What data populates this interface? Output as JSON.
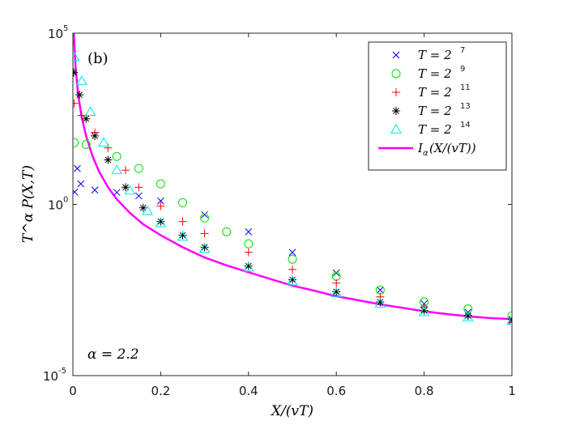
{
  "chart_data": {
    "type": "scatter",
    "panel_label": "(b)",
    "annotation": "α = 2.2",
    "xlabel": "X/(vT)",
    "ylabel": "T^α P(X,T)",
    "xlim": [
      0,
      1
    ],
    "ylim_log10": [
      -5,
      5
    ],
    "x_ticks": [
      {
        "value": 0,
        "label": "0"
      },
      {
        "value": 0.2,
        "label": "0.2"
      },
      {
        "value": 0.4,
        "label": "0.4"
      },
      {
        "value": 0.6,
        "label": "0.6"
      },
      {
        "value": 0.8,
        "label": "0.8"
      },
      {
        "value": 1,
        "label": "1"
      }
    ],
    "y_ticks": [
      {
        "log10": 5,
        "base": "10",
        "exp": "5"
      },
      {
        "log10": 0,
        "base": "10",
        "exp": "0"
      },
      {
        "log10": -5,
        "base": "10",
        "exp": "-5"
      }
    ],
    "legend_position": "top-right",
    "series": [
      {
        "name": "T = 2^7",
        "label_main": "T = 2",
        "label_exp": "7",
        "marker": "x",
        "color": "#0000ff",
        "points_log10": [
          [
            0.004,
            0.36
          ],
          [
            0.01,
            1.05
          ],
          [
            0.018,
            0.6
          ],
          [
            0.05,
            0.42
          ],
          [
            0.1,
            0.35
          ],
          [
            0.15,
            0.25
          ],
          [
            0.2,
            0.1
          ],
          [
            0.3,
            -0.3
          ],
          [
            0.4,
            -0.8
          ],
          [
            0.5,
            -1.4
          ],
          [
            0.6,
            -2.0
          ],
          [
            0.7,
            -2.5
          ],
          [
            0.8,
            -2.9
          ],
          [
            0.9,
            -3.15
          ],
          [
            1.0,
            -3.4
          ]
        ]
      },
      {
        "name": "T = 2^9",
        "label_main": "T = 2",
        "label_exp": "9",
        "marker": "o",
        "color": "#00e000",
        "points_log10": [
          [
            0.003,
            1.8
          ],
          [
            0.03,
            1.75
          ],
          [
            0.1,
            1.4
          ],
          [
            0.15,
            1.05
          ],
          [
            0.2,
            0.6
          ],
          [
            0.25,
            0.05
          ],
          [
            0.3,
            -0.4
          ],
          [
            0.35,
            -0.8
          ],
          [
            0.4,
            -1.15
          ],
          [
            0.5,
            -1.6
          ],
          [
            0.6,
            -2.1
          ],
          [
            0.7,
            -2.5
          ],
          [
            0.8,
            -2.85
          ],
          [
            0.9,
            -3.05
          ],
          [
            1.0,
            -3.25
          ]
        ]
      },
      {
        "name": "T = 2^11",
        "label_main": "T = 2",
        "label_exp": "11",
        "marker": "+",
        "color": "#ff0000",
        "points_log10": [
          [
            0.003,
            2.95
          ],
          [
            0.02,
            2.6
          ],
          [
            0.05,
            2.1
          ],
          [
            0.08,
            1.65
          ],
          [
            0.12,
            1.0
          ],
          [
            0.15,
            0.5
          ],
          [
            0.2,
            -0.05
          ],
          [
            0.25,
            -0.5
          ],
          [
            0.3,
            -0.85
          ],
          [
            0.4,
            -1.4
          ],
          [
            0.5,
            -1.9
          ],
          [
            0.6,
            -2.3
          ],
          [
            0.7,
            -2.7
          ],
          [
            0.8,
            -3.0
          ],
          [
            0.9,
            -3.25
          ],
          [
            1.0,
            -3.45
          ]
        ]
      },
      {
        "name": "T = 2^13",
        "label_main": "T = 2",
        "label_exp": "13",
        "marker": "*",
        "color": "#000000",
        "points_log10": [
          [
            0.002,
            3.85
          ],
          [
            0.015,
            3.2
          ],
          [
            0.03,
            2.5
          ],
          [
            0.05,
            2.0
          ],
          [
            0.08,
            1.3
          ],
          [
            0.12,
            0.5
          ],
          [
            0.16,
            -0.1
          ],
          [
            0.2,
            -0.5
          ],
          [
            0.25,
            -0.9
          ],
          [
            0.3,
            -1.25
          ],
          [
            0.4,
            -1.8
          ],
          [
            0.5,
            -2.2
          ],
          [
            0.6,
            -2.55
          ],
          [
            0.7,
            -2.85
          ],
          [
            0.8,
            -3.1
          ],
          [
            0.9,
            -3.25
          ],
          [
            1.0,
            -3.35
          ]
        ]
      },
      {
        "name": "T = 2^14",
        "label_main": "T = 2",
        "label_exp": "14",
        "marker": "triangle",
        "color": "#00e5e5",
        "points_log10": [
          [
            0.003,
            4.3
          ],
          [
            0.02,
            3.6
          ],
          [
            0.04,
            2.7
          ],
          [
            0.07,
            1.8
          ],
          [
            0.1,
            1.0
          ],
          [
            0.13,
            0.4
          ],
          [
            0.17,
            -0.2
          ],
          [
            0.2,
            -0.55
          ],
          [
            0.25,
            -0.95
          ],
          [
            0.3,
            -1.3
          ],
          [
            0.4,
            -1.85
          ],
          [
            0.5,
            -2.25
          ],
          [
            0.6,
            -2.6
          ],
          [
            0.7,
            -2.9
          ],
          [
            0.8,
            -3.15
          ],
          [
            0.9,
            -3.3
          ],
          [
            1.0,
            -3.4
          ]
        ]
      }
    ],
    "curve": {
      "name": "I_α(X/(vT))",
      "label_main": "I",
      "label_sub": "α",
      "label_rest": "(X/(vT))",
      "color": "#ff00ff",
      "points_log10": [
        [
          0.002,
          5.0
        ],
        [
          0.006,
          4.0
        ],
        [
          0.012,
          3.2
        ],
        [
          0.02,
          2.55
        ],
        [
          0.03,
          2.0
        ],
        [
          0.045,
          1.4
        ],
        [
          0.06,
          0.95
        ],
        [
          0.08,
          0.5
        ],
        [
          0.1,
          0.15
        ],
        [
          0.13,
          -0.25
        ],
        [
          0.16,
          -0.58
        ],
        [
          0.2,
          -0.9
        ],
        [
          0.25,
          -1.25
        ],
        [
          0.3,
          -1.55
        ],
        [
          0.35,
          -1.78
        ],
        [
          0.4,
          -1.98
        ],
        [
          0.45,
          -2.18
        ],
        [
          0.5,
          -2.37
        ],
        [
          0.55,
          -2.52
        ],
        [
          0.6,
          -2.68
        ],
        [
          0.65,
          -2.8
        ],
        [
          0.7,
          -2.92
        ],
        [
          0.75,
          -3.02
        ],
        [
          0.8,
          -3.12
        ],
        [
          0.85,
          -3.2
        ],
        [
          0.9,
          -3.27
        ],
        [
          0.95,
          -3.32
        ],
        [
          1.0,
          -3.35
        ]
      ]
    }
  }
}
